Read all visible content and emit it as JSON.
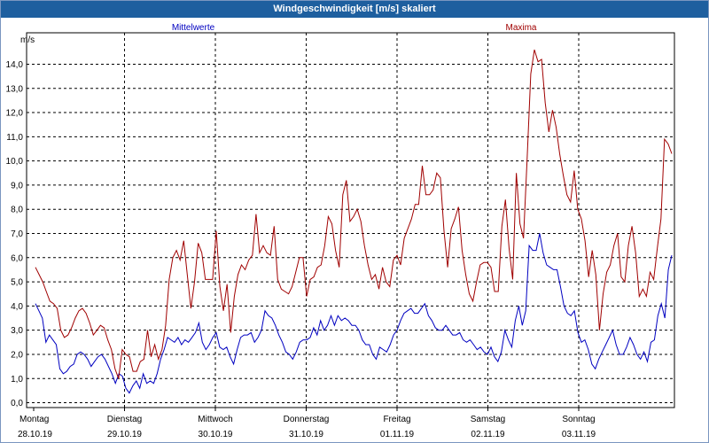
{
  "window": {
    "title": "Windgeschwindigkeit [m/s] skaliert"
  },
  "chart_data": {
    "type": "line",
    "ylabel": "m/s",
    "ylim": [
      -0.2,
      15.3
    ],
    "xlim": [
      0,
      7
    ],
    "yticks": [
      "0,0",
      "1,0",
      "2,0",
      "3,0",
      "4,0",
      "5,0",
      "6,0",
      "7,0",
      "8,0",
      "9,0",
      "10,0",
      "11,0",
      "12,0",
      "13,0",
      "14,0"
    ],
    "yticks_values": [
      0,
      1,
      2,
      3,
      4,
      5,
      6,
      7,
      8,
      9,
      10,
      11,
      12,
      13,
      14
    ],
    "xticks": [
      {
        "day": "Montag",
        "date": "28.10.19"
      },
      {
        "day": "Dienstag",
        "date": "29.10.19"
      },
      {
        "day": "Mittwoch",
        "date": "30.10.19"
      },
      {
        "day": "Donnerstag",
        "date": "31.10.19"
      },
      {
        "day": "Freitag",
        "date": "01.11.19"
      },
      {
        "day": "Samstag",
        "date": "02.11.19"
      },
      {
        "day": "Sonntag",
        "date": "03.11.19"
      }
    ],
    "grid": true,
    "series": [
      {
        "name": "Mittelwerte",
        "color": "#0000c0",
        "values": [
          4.1,
          3.8,
          3.5,
          2.5,
          2.8,
          2.6,
          2.4,
          1.4,
          1.2,
          1.3,
          1.5,
          1.6,
          2.0,
          2.1,
          2.0,
          1.8,
          1.5,
          1.7,
          1.9,
          2.0,
          1.8,
          1.5,
          1.2,
          0.8,
          1.2,
          1.1,
          0.6,
          0.4,
          0.7,
          0.9,
          0.6,
          1.2,
          0.8,
          0.9,
          0.8,
          1.2,
          1.8,
          2.2,
          2.7,
          2.6,
          2.5,
          2.7,
          2.4,
          2.6,
          2.5,
          2.7,
          2.9,
          3.3,
          2.5,
          2.2,
          2.4,
          2.7,
          2.9,
          2.3,
          2.2,
          2.3,
          1.9,
          1.6,
          2.2,
          2.7,
          2.8,
          2.8,
          2.9,
          2.5,
          2.7,
          3.0,
          3.8,
          3.6,
          3.5,
          3.2,
          2.8,
          2.5,
          2.1,
          2.0,
          1.8,
          2.1,
          2.5,
          2.6,
          2.6,
          2.7,
          3.1,
          2.8,
          3.4,
          3.0,
          3.2,
          3.6,
          3.2,
          3.6,
          3.4,
          3.5,
          3.4,
          3.2,
          3.2,
          3.0,
          2.6,
          2.4,
          2.4,
          2.0,
          1.8,
          2.3,
          2.2,
          2.1,
          2.4,
          2.8,
          3.0,
          3.4,
          3.7,
          3.8,
          3.9,
          3.7,
          3.7,
          3.9,
          4.1,
          3.6,
          3.4,
          3.1,
          3.0,
          3.0,
          3.2,
          3.0,
          2.8,
          2.8,
          2.9,
          2.6,
          2.5,
          2.6,
          2.4,
          2.2,
          2.3,
          2.1,
          2.0,
          2.3,
          1.9,
          1.7,
          2.1,
          3.0,
          2.6,
          2.3,
          3.4,
          4.0,
          3.2,
          3.8,
          6.5,
          6.3,
          6.3,
          7.0,
          6.2,
          5.7,
          5.6,
          5.5,
          5.5,
          4.8,
          4.0,
          3.7,
          3.6,
          3.8,
          2.9,
          2.5,
          2.6,
          2.2,
          1.6,
          1.4,
          1.8,
          2.1,
          2.4,
          2.7,
          3.0,
          2.4,
          2.0,
          2.0,
          2.3,
          2.7,
          2.4,
          2.0,
          1.8,
          2.1,
          1.7,
          2.5,
          2.6,
          3.6,
          4.1,
          3.5,
          5.5,
          6.1
        ]
      },
      {
        "name": "Maxima",
        "color": "#a00000",
        "values": [
          5.6,
          5.3,
          5.0,
          4.6,
          4.2,
          4.1,
          3.9,
          3.0,
          2.7,
          2.8,
          3.1,
          3.5,
          3.8,
          3.9,
          3.7,
          3.3,
          2.8,
          3.0,
          3.2,
          3.1,
          2.6,
          2.2,
          1.4,
          1.0,
          2.2,
          2.0,
          1.9,
          1.3,
          1.3,
          1.7,
          1.8,
          3.0,
          1.9,
          2.4,
          1.8,
          2.2,
          3.2,
          5.1,
          6.0,
          6.3,
          5.9,
          6.7,
          5.3,
          3.9,
          5.0,
          6.6,
          6.2,
          5.1,
          5.1,
          5.1,
          7.1,
          4.8,
          3.8,
          4.9,
          2.9,
          4.4,
          5.3,
          5.7,
          5.5,
          5.9,
          6.1,
          7.8,
          6.2,
          6.5,
          6.2,
          6.1,
          7.3,
          5.1,
          4.7,
          4.6,
          4.5,
          4.8,
          5.4,
          6.0,
          6.0,
          4.4,
          5.1,
          5.2,
          5.6,
          5.7,
          6.5,
          7.7,
          7.4,
          6.3,
          5.6,
          8.6,
          9.2,
          7.5,
          7.7,
          8.0,
          7.5,
          6.5,
          5.7,
          5.1,
          5.3,
          4.7,
          5.6,
          5.0,
          4.8,
          5.9,
          6.1,
          5.7,
          6.8,
          7.2,
          7.6,
          8.2,
          8.2,
          9.8,
          8.6,
          8.6,
          8.8,
          9.5,
          9.3,
          7.1,
          5.6,
          7.2,
          7.6,
          8.1,
          6.3,
          5.3,
          4.5,
          4.2,
          5.0,
          5.7,
          5.8,
          5.8,
          5.6,
          4.6,
          4.6,
          7.3,
          8.4,
          6.4,
          5.1,
          9.5,
          7.4,
          6.8,
          10.1,
          13.6,
          14.6,
          14.1,
          14.2,
          12.4,
          11.2,
          12.1,
          11.4,
          10.3,
          9.4,
          8.6,
          8.3,
          9.6,
          8.0,
          7.6,
          6.7,
          5.2,
          6.3,
          5.3,
          3.0,
          4.5,
          5.4,
          5.7,
          6.5,
          7.0,
          5.2,
          5.0,
          6.5,
          7.3,
          6.2,
          4.4,
          4.7,
          4.4,
          5.4,
          5.1,
          6.4,
          7.6,
          10.9,
          10.7,
          10.3
        ]
      }
    ]
  }
}
